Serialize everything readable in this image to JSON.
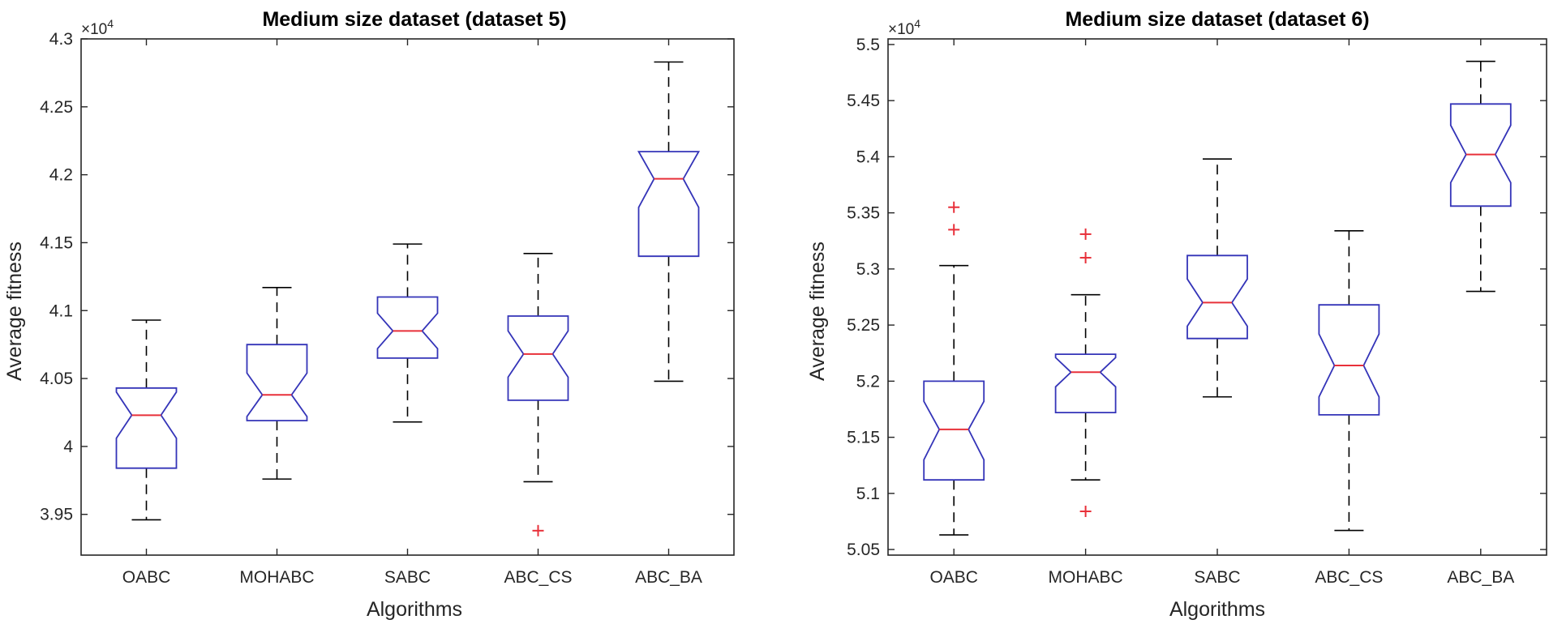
{
  "colors": {
    "box": "#3434b8",
    "median": "#e8303a",
    "whisker": "#000000",
    "outlier": "#e8303a",
    "axis": "#262626"
  },
  "chart_data": [
    {
      "type": "box",
      "title": "Medium size dataset (dataset 5)",
      "xlabel": "Algorithms",
      "ylabel": "Average fitness",
      "exponent_label": "×10",
      "exponent_power": "4",
      "ylim": [
        3.92,
        4.3
      ],
      "yticks": [
        3.95,
        4,
        4.05,
        4.1,
        4.15,
        4.2,
        4.25,
        4.3
      ],
      "ytick_labels": [
        "3.95",
        "4",
        "4.05",
        "4.1",
        "4.15",
        "4.2",
        "4.25",
        "4.3"
      ],
      "categories": [
        "OABC",
        "MOHABC",
        "SABC",
        "ABC_CS",
        "ABC_BA"
      ],
      "boxes": [
        {
          "whisker_low": 3.946,
          "q1": 3.984,
          "median": 4.023,
          "q3": 4.043,
          "whisker_high": 4.093,
          "notch_low": 4.006,
          "notch_high": 4.04,
          "outliers": []
        },
        {
          "whisker_low": 3.976,
          "q1": 4.019,
          "median": 4.038,
          "q3": 4.075,
          "whisker_high": 4.117,
          "notch_low": 4.022,
          "notch_high": 4.054,
          "outliers": []
        },
        {
          "whisker_low": 4.018,
          "q1": 4.065,
          "median": 4.085,
          "q3": 4.11,
          "whisker_high": 4.149,
          "notch_low": 4.072,
          "notch_high": 4.098,
          "outliers": []
        },
        {
          "whisker_low": 3.974,
          "q1": 4.034,
          "median": 4.068,
          "q3": 4.096,
          "whisker_high": 4.142,
          "notch_low": 4.051,
          "notch_high": 4.085,
          "outliers": [
            3.938
          ]
        },
        {
          "whisker_low": 4.048,
          "q1": 4.14,
          "median": 4.197,
          "q3": 4.217,
          "whisker_high": 4.283,
          "notch_low": 4.176,
          "notch_high": 4.217,
          "outliers": []
        }
      ]
    },
    {
      "type": "box",
      "title": "Medium size dataset (dataset 6)",
      "xlabel": "Algorithms",
      "ylabel": "Average fitness",
      "exponent_label": "×10",
      "exponent_power": "4",
      "ylim": [
        5.045,
        5.505
      ],
      "yticks": [
        5.05,
        5.1,
        5.15,
        5.2,
        5.25,
        5.3,
        5.35,
        5.4,
        5.45,
        5.5
      ],
      "ytick_labels": [
        "5.05",
        "5.1",
        "5.15",
        "5.2",
        "5.25",
        "5.3",
        "5.35",
        "5.4",
        "5.45",
        "5.5"
      ],
      "categories": [
        "OABC",
        "MOHABC",
        "SABC",
        "ABC_CS",
        "ABC_BA"
      ],
      "boxes": [
        {
          "whisker_low": 5.063,
          "q1": 5.112,
          "median": 5.157,
          "q3": 5.2,
          "whisker_high": 5.303,
          "notch_low": 5.13,
          "notch_high": 5.182,
          "outliers": [
            5.355,
            5.335
          ]
        },
        {
          "whisker_low": 5.112,
          "q1": 5.172,
          "median": 5.208,
          "q3": 5.224,
          "whisker_high": 5.277,
          "notch_low": 5.195,
          "notch_high": 5.221,
          "outliers": [
            5.331,
            5.31,
            5.084
          ]
        },
        {
          "whisker_low": 5.186,
          "q1": 5.238,
          "median": 5.27,
          "q3": 5.312,
          "whisker_high": 5.398,
          "notch_low": 5.249,
          "notch_high": 5.291,
          "outliers": []
        },
        {
          "whisker_low": 5.067,
          "q1": 5.17,
          "median": 5.214,
          "q3": 5.268,
          "whisker_high": 5.334,
          "notch_low": 5.186,
          "notch_high": 5.242,
          "outliers": []
        },
        {
          "whisker_low": 5.28,
          "q1": 5.356,
          "median": 5.402,
          "q3": 5.447,
          "whisker_high": 5.485,
          "notch_low": 5.377,
          "notch_high": 5.428,
          "outliers": []
        }
      ]
    }
  ]
}
